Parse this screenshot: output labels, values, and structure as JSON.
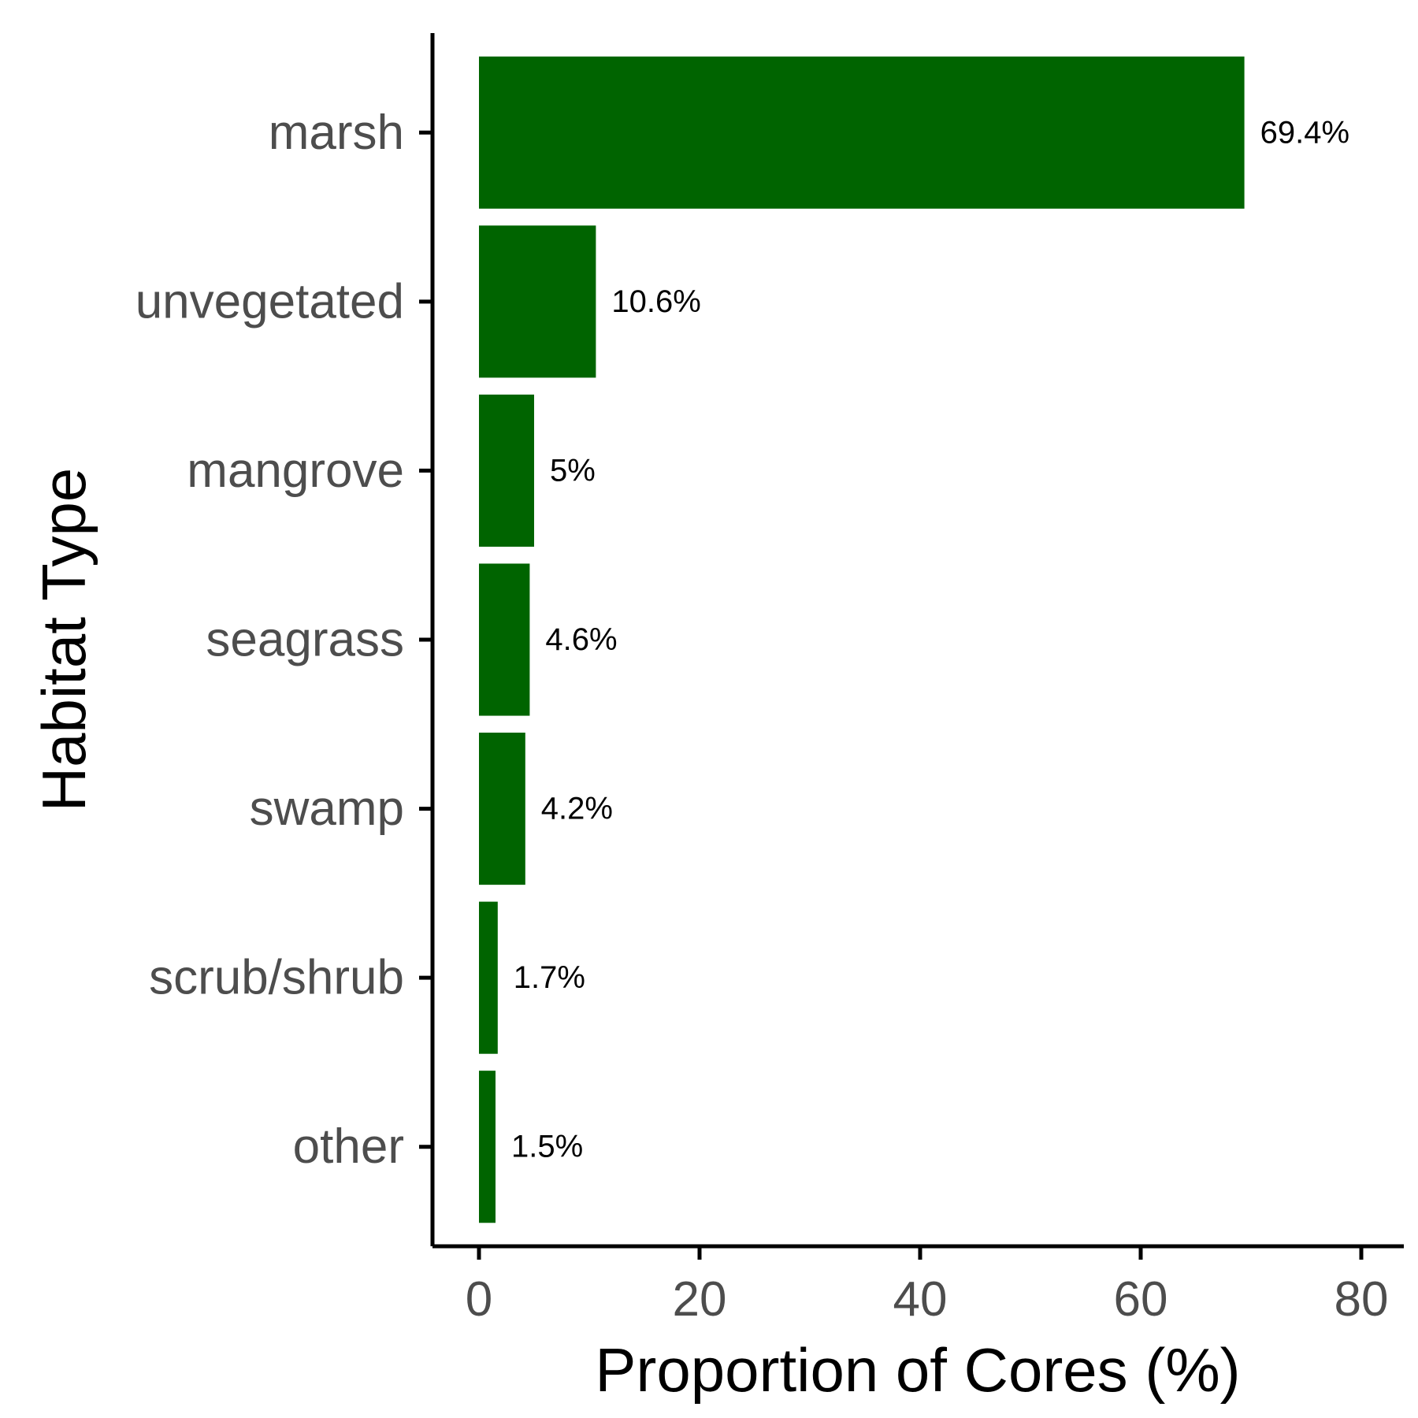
{
  "chart_data": {
    "type": "bar",
    "orientation": "horizontal",
    "categories": [
      "marsh",
      "unvegetated",
      "mangrove",
      "seagrass",
      "swamp",
      "scrub/shrub",
      "other"
    ],
    "values": [
      69.4,
      10.6,
      5.0,
      4.6,
      4.2,
      1.7,
      1.5
    ],
    "data_labels": [
      "69.4%",
      "10.6%",
      "5%",
      "4.6%",
      "4.2%",
      "1.7%",
      "1.5%"
    ],
    "xlabel": "Proportion of Cores (%)",
    "ylabel": "Habitat Type",
    "xlim": [
      -2,
      84
    ],
    "x_ticks": [
      0,
      20,
      40,
      60,
      80
    ],
    "x_tick_labels": [
      "0",
      "20",
      "40",
      "60",
      "80"
    ],
    "bar_color": "#006400",
    "grid": false,
    "legend": "none"
  }
}
